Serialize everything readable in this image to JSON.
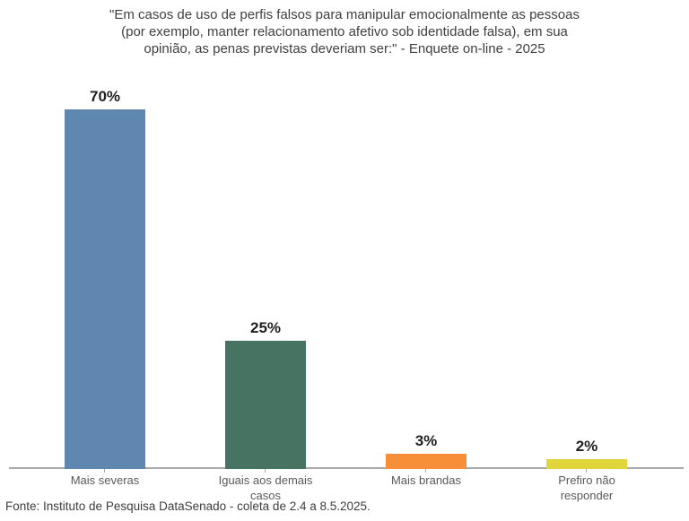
{
  "title": {
    "lines": [
      "\"Em casos de uso de perfis falsos para manipular emocionalmente as pessoas",
      "(por exemplo, manter relacionamento afetivo sob identidade falsa), em sua",
      "opinião, as penas previstas deveriam ser:\" - Enquete on-line - 2025"
    ]
  },
  "chart_data": {
    "type": "bar",
    "title": "\"Em casos de uso de perfis falsos para manipular emocionalmente as pessoas (por exemplo, manter relacionamento afetivo sob identidade falsa), em sua opinião, as penas previstas deveriam ser:\" - Enquete on-line - 2025",
    "categories": [
      "Mais severas",
      "Iguais aos demais casos",
      "Mais brandas",
      "Prefiro não responder"
    ],
    "values": [
      70,
      25,
      3,
      2
    ],
    "value_labels": [
      "70%",
      "25%",
      "3%",
      "2%"
    ],
    "bar_colors": [
      "#5F87B0",
      "#477363",
      "#F78E39",
      "#E0D53B"
    ],
    "xlabel": "",
    "ylabel": "",
    "ylim": [
      0,
      75
    ],
    "grid": false,
    "legend": "none"
  },
  "footer": {
    "source": "Fonte: Instituto de Pesquisa DataSenado - coleta de 2.4 a 8.5.2025."
  }
}
